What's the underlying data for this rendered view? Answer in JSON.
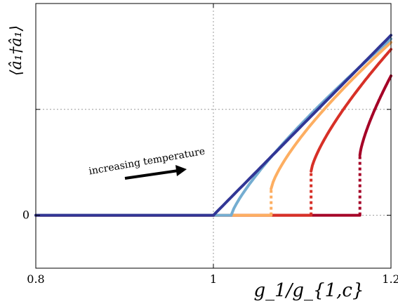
{
  "chart_data": {
    "type": "line",
    "title": "",
    "xlabel": "g_1/g_{1,c}",
    "ylabel": "⟨â₁†â₁⟩",
    "xlim": [
      0.8,
      1.2
    ],
    "ylim": [
      -0.3,
      1.2
    ],
    "x_ticks": [
      {
        "value": 0.8,
        "label": "0.8"
      },
      {
        "value": 1.0,
        "label": "1"
      },
      {
        "value": 1.2,
        "label": "1.2"
      }
    ],
    "y_ticks": [
      {
        "value": 0,
        "label": "0"
      }
    ],
    "grid": {
      "x": [
        1.0
      ],
      "y": [
        0,
        0.6
      ],
      "style": "dotted"
    },
    "annotation": {
      "text": "increasing temperature",
      "arrow": "pointing right, rising"
    },
    "series": [
      {
        "color": "#a50026",
        "critical_x": 1.165,
        "jump_y": 0.34,
        "end_y": 0.79,
        "dashed_jump": true
      },
      {
        "color": "#d73027",
        "critical_x": 1.11,
        "jump_y": 0.25,
        "end_y": 0.94,
        "dashed_jump": true
      },
      {
        "color": "#fdae61",
        "critical_x": 1.065,
        "jump_y": 0.15,
        "end_y": 0.98,
        "dashed_jump": true
      },
      {
        "color": "#74add1",
        "critical_x": 1.02,
        "jump_y": 0.0,
        "end_y": 1.0,
        "dashed_jump": false
      },
      {
        "color": "#313695",
        "critical_x": 1.0,
        "jump_y": 0.0,
        "end_y": 1.02,
        "dashed_jump": false
      }
    ]
  }
}
